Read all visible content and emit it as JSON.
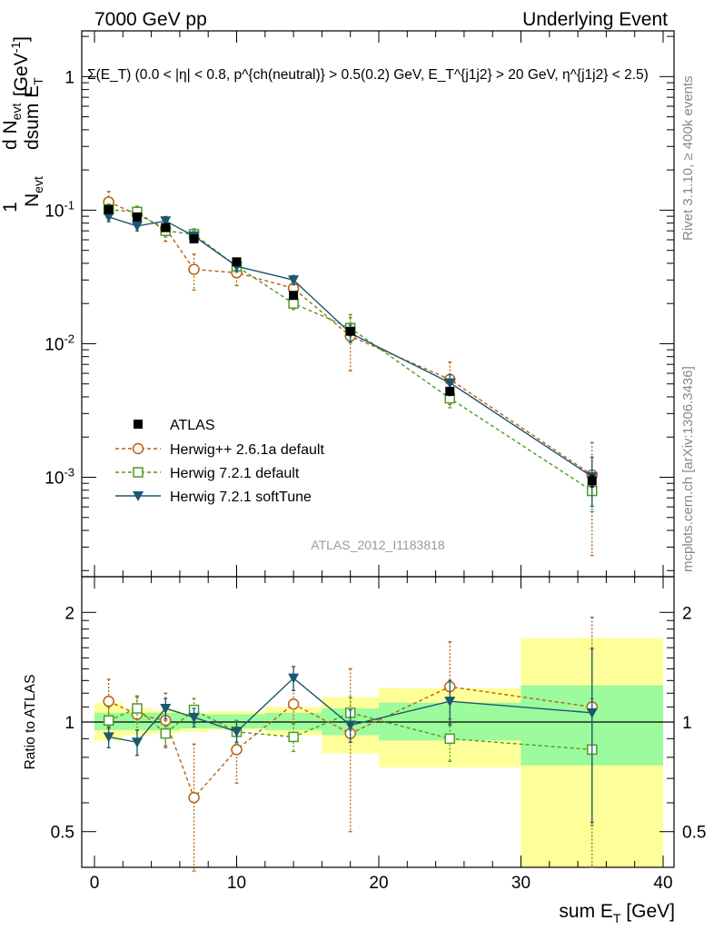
{
  "header": {
    "left": "7000 GeV pp",
    "right": "Underlying Event"
  },
  "side_labels": {
    "rivet": "Rivet 3.1.10, ≥ 400k events",
    "mcplots": "mcplots.cern.ch [arXiv:1306.3436]"
  },
  "annotations": {
    "cut_text": "Σ(E_T) (0.0 < |η| < 0.8, p^{ch(neutral)} > 0.5(0.2) GeV, E_T^{j1j2} > 20 GeV, η^{j1j2} < 2.5)",
    "analysis_id": "ATLAS_2012_I1183818"
  },
  "colors": {
    "data": "#000000",
    "herwigpp": "#b8610f",
    "herwig721": "#4f9a23",
    "softtune": "#1b5870",
    "band_inner": "#9cfb9c",
    "band_outer": "#ffff99"
  },
  "chart_data": [
    {
      "type": "scatter",
      "panel": "main",
      "ylabel": "1/N_evt dN_evt/dsum E_T [GeV^-1]",
      "yscale": "log",
      "xlim": [
        0,
        40
      ],
      "ylim": [
        0.00018,
        2.2
      ],
      "ytick_labels": [
        "1",
        "10^-1",
        "10^-2",
        "10^-3"
      ],
      "x": [
        1,
        3,
        5,
        7,
        10,
        14,
        18,
        25,
        35
      ],
      "x_edges": [
        0,
        2,
        4,
        6,
        8,
        12,
        16,
        20,
        30,
        40
      ],
      "series": [
        {
          "name": "ATLAS",
          "marker": "filled-square",
          "values": [
            0.101,
            0.089,
            0.074,
            0.061,
            0.041,
            0.023,
            0.0124,
            0.0044,
            0.00094
          ],
          "rel_err": [
            0.05,
            0.05,
            0.05,
            0.05,
            0.05,
            0.05,
            0.06,
            0.07,
            0.1
          ]
        },
        {
          "name": "Herwig++ 2.6.1a default",
          "marker": "open-circle",
          "values": [
            0.115,
            0.093,
            0.073,
            0.036,
            0.034,
            0.026,
            0.0114,
            0.0054,
            0.00104
          ],
          "rel_err": [
            0.2,
            0.15,
            0.2,
            0.3,
            0.2,
            0.2,
            0.45,
            0.35,
            0.75
          ]
        },
        {
          "name": "Herwig 7.2.1 default",
          "marker": "open-square",
          "values": [
            0.101,
            0.097,
            0.07,
            0.066,
            0.038,
            0.02,
            0.0131,
            0.0039,
            0.00079
          ],
          "rel_err": [
            0.1,
            0.1,
            0.1,
            0.1,
            0.1,
            0.1,
            0.2,
            0.15,
            0.3
          ]
        },
        {
          "name": "Herwig 7.2.1 softTune",
          "marker": "filled-triangle-down",
          "values": [
            0.089,
            0.076,
            0.083,
            0.064,
            0.038,
            0.03,
            0.012,
            0.0051,
            0.00101
          ],
          "rel_err": [
            0.08,
            0.08,
            0.08,
            0.08,
            0.08,
            0.08,
            0.15,
            0.15,
            0.4
          ]
        }
      ]
    },
    {
      "type": "scatter",
      "panel": "ratio",
      "xlabel": "sum E_T [GeV]",
      "ylabel": "Ratio to ATLAS",
      "xlim": [
        0,
        40
      ],
      "ylim": [
        0.4,
        2.5
      ],
      "yscale": "log",
      "xticks": [
        0,
        10,
        20,
        30,
        40
      ],
      "yticks": [
        0.5,
        1,
        2
      ],
      "x": [
        1,
        3,
        5,
        7,
        10,
        14,
        18,
        25,
        35
      ],
      "bands": {
        "x_edges": [
          0,
          2,
          4,
          6,
          8,
          12,
          16,
          20,
          30,
          40
        ],
        "inner": [
          [
            0.95,
            1.06
          ],
          [
            0.95,
            1.06
          ],
          [
            0.95,
            1.06
          ],
          [
            0.96,
            1.05
          ],
          [
            0.96,
            1.05
          ],
          [
            0.95,
            1.06
          ],
          [
            0.92,
            1.09
          ],
          [
            0.89,
            1.13
          ],
          [
            0.76,
            1.26
          ]
        ],
        "outer": [
          [
            0.89,
            1.13
          ],
          [
            0.92,
            1.09
          ],
          [
            0.93,
            1.08
          ],
          [
            0.94,
            1.06
          ],
          [
            0.95,
            1.07
          ],
          [
            0.92,
            1.1
          ],
          [
            0.82,
            1.17
          ],
          [
            0.75,
            1.24
          ],
          [
            0.4,
            1.7
          ]
        ]
      },
      "series": [
        {
          "name": "Herwig++ 2.6.1a default",
          "values": [
            1.14,
            1.05,
            1.01,
            0.62,
            0.84,
            1.12,
            0.93,
            1.25,
            1.1
          ],
          "err_lo": [
            0.96,
            0.95,
            0.86,
            0.39,
            0.68,
            0.99,
            0.5,
            0.99,
            0.4
          ],
          "err_hi": [
            1.31,
            1.17,
            1.2,
            0.87,
            1.01,
            1.32,
            1.4,
            1.66,
            1.94
          ]
        },
        {
          "name": "Herwig 7.2.1 default",
          "values": [
            1.01,
            1.09,
            0.93,
            1.08,
            0.94,
            0.91,
            1.06,
            0.9,
            0.84
          ],
          "err_lo": [
            0.92,
            1.0,
            0.85,
            0.99,
            0.87,
            0.83,
            0.95,
            0.78,
            0.52
          ],
          "err_hi": [
            1.1,
            1.18,
            1.01,
            1.16,
            1.01,
            0.99,
            1.17,
            1.02,
            1.16
          ]
        },
        {
          "name": "Herwig 7.2.1 softTune",
          "values": [
            0.91,
            0.88,
            1.09,
            1.03,
            0.94,
            1.32,
            0.98,
            1.14,
            1.06
          ],
          "err_lo": [
            0.85,
            0.81,
            1.02,
            0.97,
            0.88,
            1.22,
            0.88,
            0.98,
            0.53
          ],
          "err_hi": [
            0.97,
            0.95,
            1.16,
            1.09,
            1.0,
            1.42,
            1.08,
            1.3,
            1.59
          ]
        }
      ]
    }
  ]
}
